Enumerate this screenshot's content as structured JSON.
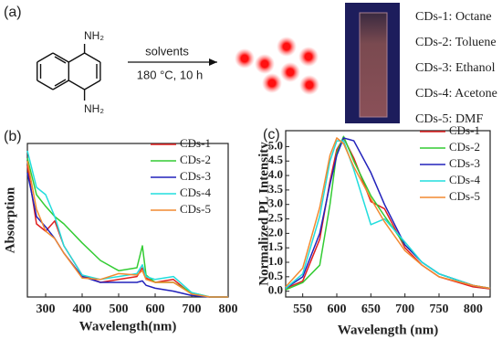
{
  "panel_a": {
    "label": "(a)",
    "amine_top": "NH₂",
    "amine_bottom": "NH₂",
    "arrow_top": "solvents",
    "arrow_bottom": "180 °C, 10 h",
    "legend": [
      "CDs-1: Octane",
      "CDs-2: Toluene",
      "CDs-3: Ethanol",
      "CDs-4: Acetone",
      "CDs-5: DMF"
    ]
  },
  "chart_data": [
    {
      "type": "line",
      "panel_label": "(b)",
      "xlabel": "Wavelength(nm)",
      "ylabel": "Absorption",
      "x": [
        250,
        275,
        300,
        325,
        350,
        400,
        450,
        500,
        550,
        565,
        575,
        600,
        650,
        700,
        750,
        800
      ],
      "xlim": [
        250,
        800
      ],
      "xticks": [
        300,
        400,
        500,
        600,
        700,
        800
      ],
      "ylim": [
        0,
        1.05
      ],
      "legend": "upper right",
      "series": [
        {
          "name": "CDs-1",
          "color": "#e02020",
          "values": [
            0.9,
            0.5,
            0.45,
            0.52,
            0.35,
            0.15,
            0.1,
            0.12,
            0.14,
            0.2,
            0.13,
            0.1,
            0.12,
            0.02,
            0.0,
            0.0
          ]
        },
        {
          "name": "CDs-2",
          "color": "#33cc33",
          "values": [
            0.95,
            0.7,
            0.62,
            0.55,
            0.5,
            0.37,
            0.25,
            0.18,
            0.2,
            0.35,
            0.15,
            0.1,
            0.1,
            0.03,
            0.0,
            0.0
          ]
        },
        {
          "name": "CDs-3",
          "color": "#2222bb",
          "values": [
            0.85,
            0.55,
            0.48,
            0.4,
            0.3,
            0.14,
            0.1,
            0.1,
            0.1,
            0.11,
            0.08,
            0.06,
            0.04,
            0.01,
            0.0,
            0.0
          ]
        },
        {
          "name": "CDs-4",
          "color": "#22dddd",
          "values": [
            1.0,
            0.75,
            0.7,
            0.55,
            0.35,
            0.15,
            0.12,
            0.14,
            0.16,
            0.22,
            0.14,
            0.12,
            0.14,
            0.03,
            0.0,
            0.0
          ]
        },
        {
          "name": "CDs-5",
          "color": "#f28a30",
          "values": [
            0.93,
            0.6,
            0.45,
            0.4,
            0.3,
            0.13,
            0.12,
            0.16,
            0.15,
            0.18,
            0.12,
            0.1,
            0.1,
            0.02,
            0.0,
            0.0
          ]
        }
      ]
    },
    {
      "type": "line",
      "panel_label": "(c)",
      "xlabel": "Wavelength (nm)",
      "ylabel": "Normalized PL Intensity",
      "x": [
        525,
        550,
        575,
        590,
        600,
        610,
        625,
        650,
        670,
        700,
        725,
        750,
        800,
        825
      ],
      "xlim": [
        525,
        825
      ],
      "xticks": [
        550,
        600,
        650,
        700,
        750,
        800
      ],
      "ylim": [
        -0.2,
        5.55
      ],
      "yticks": [
        {
          "value": 0,
          "label": "0.0"
        },
        0.5,
        {
          "value": 1,
          "label": "1.0"
        },
        1.5,
        {
          "value": 2,
          "label": "2.0"
        },
        2.5,
        {
          "value": 3,
          "label": "3.0"
        },
        3.5,
        {
          "value": 4,
          "label": "4.0"
        },
        4.5,
        {
          "value": 5,
          "label": "5.0"
        }
      ],
      "legend": "upper right",
      "series": [
        {
          "name": "CDs-1",
          "color": "#e02020",
          "values": [
            0.1,
            0.35,
            1.8,
            3.8,
            4.9,
            5.3,
            4.6,
            3.1,
            2.85,
            1.5,
            0.9,
            0.5,
            0.15,
            0.08
          ]
        },
        {
          "name": "CDs-2",
          "color": "#33cc33",
          "values": [
            0.05,
            0.3,
            0.9,
            3.0,
            4.8,
            5.35,
            4.5,
            3.3,
            2.6,
            1.6,
            1.0,
            0.6,
            0.2,
            0.1
          ]
        },
        {
          "name": "CDs-3",
          "color": "#2222bb",
          "values": [
            0.1,
            0.5,
            2.0,
            3.7,
            4.7,
            5.3,
            5.2,
            4.1,
            3.0,
            1.6,
            1.0,
            0.6,
            0.2,
            0.1
          ]
        },
        {
          "name": "CDs-4",
          "color": "#22dddd",
          "values": [
            0.1,
            0.6,
            2.6,
            4.5,
            5.2,
            5.2,
            4.2,
            2.3,
            2.5,
            1.7,
            1.0,
            0.6,
            0.2,
            0.1
          ]
        },
        {
          "name": "CDs-5",
          "color": "#f28a30",
          "values": [
            0.15,
            0.8,
            2.9,
            4.7,
            5.3,
            5.1,
            4.3,
            3.2,
            2.4,
            1.4,
            0.9,
            0.5,
            0.2,
            0.1
          ]
        }
      ]
    }
  ]
}
